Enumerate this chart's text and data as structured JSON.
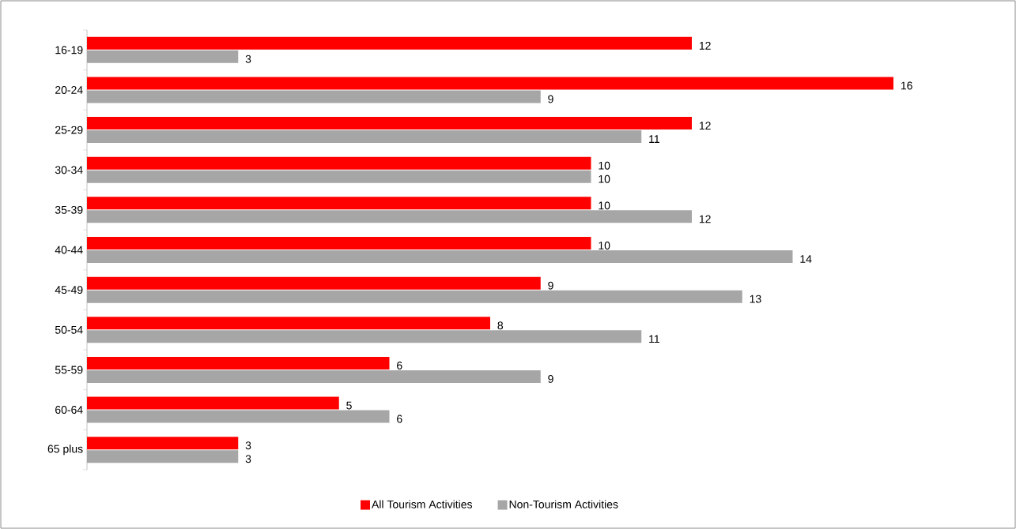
{
  "chart_data": {
    "type": "bar",
    "orientation": "horizontal",
    "categories": [
      "16-19",
      "20-24",
      "25-29",
      "30-34",
      "35-39",
      "40-44",
      "45-49",
      "50-54",
      "55-59",
      "60-64",
      "65 plus"
    ],
    "series": [
      {
        "name": "All Tourism Activities",
        "color": "#ff0000",
        "values": [
          12,
          16,
          12,
          10,
          10,
          10,
          9,
          8,
          6,
          5,
          3
        ]
      },
      {
        "name": "Non-Tourism Activities",
        "color": "#a6a6a6",
        "values": [
          3,
          9,
          11,
          10,
          12,
          14,
          13,
          11,
          9,
          6,
          3
        ]
      }
    ],
    "data_labels": true,
    "legend": "bottom"
  }
}
